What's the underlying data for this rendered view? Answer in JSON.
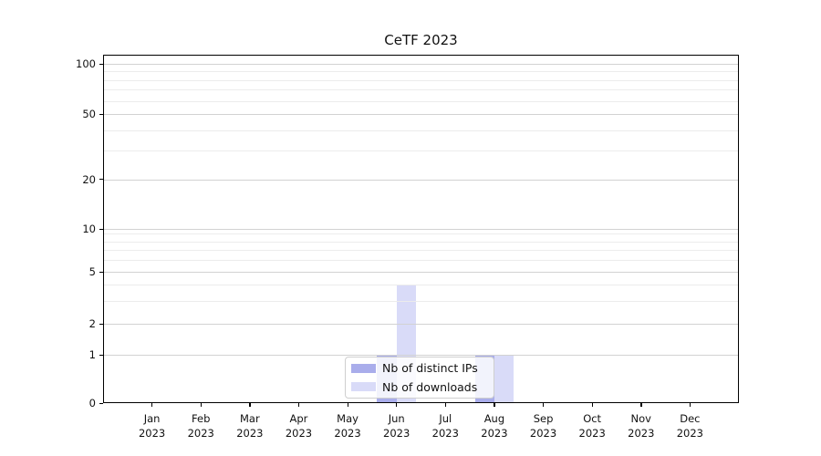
{
  "page": {
    "background": "#ffffff"
  },
  "chart_data": {
    "type": "bar",
    "title": "CeTF 2023",
    "year": "2023",
    "months": [
      "Jan",
      "Feb",
      "Mar",
      "Apr",
      "May",
      "Jun",
      "Jul",
      "Aug",
      "Sep",
      "Oct",
      "Nov",
      "Dec"
    ],
    "categories": [
      "Jan 2023",
      "Feb 2023",
      "Mar 2023",
      "Apr 2023",
      "May 2023",
      "Jun 2023",
      "Jul 2023",
      "Aug 2023",
      "Sep 2023",
      "Oct 2023",
      "Nov 2023",
      "Dec 2023"
    ],
    "series": [
      {
        "key": "distinct-ips",
        "name": "Nb of distinct IPs",
        "color": "#a9adeb",
        "values": [
          0,
          0,
          0,
          0,
          0,
          1,
          0,
          1,
          0,
          0,
          0,
          0
        ]
      },
      {
        "key": "downloads",
        "name": "Nb of downloads",
        "color": "#d9dbf8",
        "values": [
          0,
          0,
          0,
          0,
          0,
          4,
          0,
          1,
          0,
          0,
          0,
          0
        ]
      }
    ],
    "y_axis": {
      "scale": "log1p",
      "tick_labels": [
        "0",
        "1",
        "2",
        "5",
        "10",
        "20",
        "50",
        "100"
      ],
      "tick_values": [
        0,
        1,
        2,
        5,
        10,
        20,
        50,
        100
      ],
      "minor_gridlines": [
        3,
        4,
        6,
        7,
        8,
        9,
        30,
        40,
        60,
        70,
        80,
        90
      ],
      "ylim": [
        0,
        113
      ]
    },
    "xlabel": "",
    "ylabel": "",
    "grid": true,
    "legend_position": "lower center"
  },
  "colors": {
    "bar_distinct_ips": "#a9adeb",
    "bar_downloads": "#d9dbf8",
    "grid_major": "#d2d2d2",
    "grid_minor": "#ececec",
    "axis": "#000000",
    "legend_border": "#cfcfcf"
  }
}
